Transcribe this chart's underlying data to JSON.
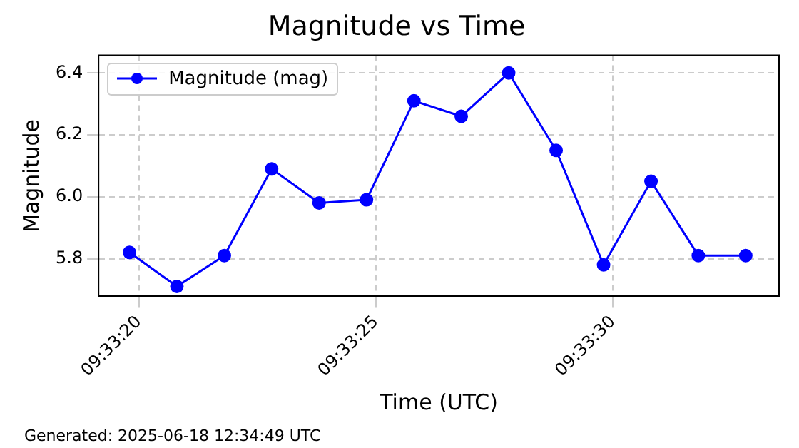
{
  "chart_data": {
    "type": "line",
    "title": "Magnitude vs Time",
    "xlabel": "Time (UTC)",
    "ylabel": "Magnitude",
    "annotations": [
      "Generated: 2025-06-18 12:34:49 UTC"
    ],
    "x": [
      9.5555,
      9.555778,
      9.556056,
      9.556333,
      9.556611,
      9.556889,
      9.557167,
      9.557444,
      9.557722,
      9.558,
      9.558278,
      9.558556,
      9.558833,
      9.559111
    ],
    "series": [
      {
        "name": "Magnitude (mag)",
        "color": "#0000ff",
        "values": [
          5.82,
          5.71,
          5.81,
          6.09,
          5.98,
          5.99,
          6.31,
          6.26,
          6.4,
          6.15,
          5.78,
          6.05,
          5.81,
          5.81
        ]
      }
    ],
    "xlim": [
      9.555319,
      9.559306
    ],
    "xticks": [
      {
        "value": 9.555556,
        "label": "09:33:20"
      },
      {
        "value": 9.556944,
        "label": "09:33:25"
      },
      {
        "value": 9.558333,
        "label": "09:33:30"
      }
    ],
    "ylim": [
      5.678,
      6.457
    ],
    "yticks": [
      {
        "value": 5.8,
        "label": "5.8"
      },
      {
        "value": 6,
        "label": "6.0"
      },
      {
        "value": 6.2,
        "label": "6.2"
      },
      {
        "value": 6.4,
        "label": "6.4"
      }
    ],
    "grid": true,
    "legend": "top left",
    "marker": "circle",
    "line_style": "solid"
  }
}
